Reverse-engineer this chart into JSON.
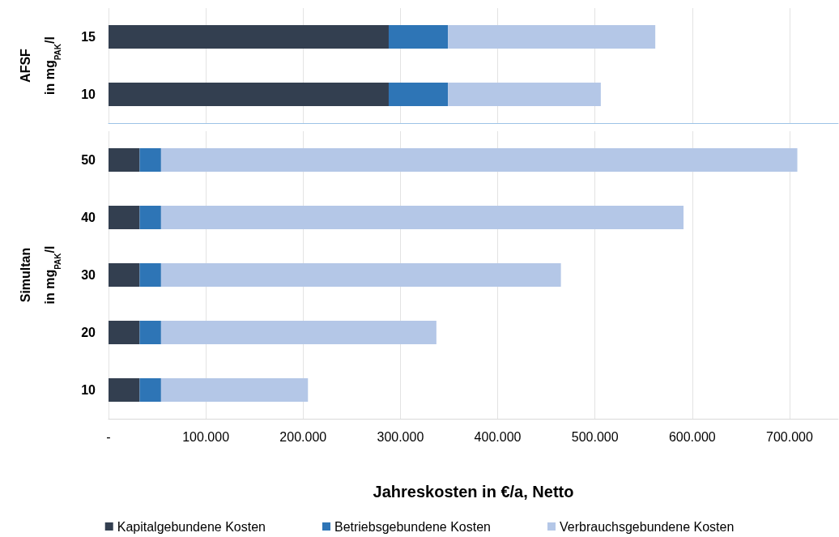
{
  "chart_data": [
    {
      "type": "bar",
      "orientation": "horizontal",
      "stacked": true,
      "ylabel": "AFSF\nin mg$_{PAK}$/l",
      "categories": [
        "15",
        "10"
      ],
      "series": [
        {
          "color": "#333f50",
          "values": [
            288000,
            288000
          ]
        },
        {
          "color": "#2e75b6",
          "values": [
            61000,
            61000
          ]
        },
        {
          "color": "#b4c7e7",
          "values": [
            213000,
            157000
          ]
        }
      ],
      "xlim": [
        0,
        750000
      ],
      "xticks": [
        {
          "value": 0,
          "label": null
        },
        {
          "value": 100000,
          "label": null
        },
        {
          "value": 200000,
          "label": null
        },
        {
          "value": 300000,
          "label": null
        },
        {
          "value": 400000,
          "label": null
        },
        {
          "value": 500000,
          "label": null
        },
        {
          "value": 600000,
          "label": null
        },
        {
          "value": 700000,
          "label": null
        }
      ],
      "grid": "x",
      "tick_labels": "y"
    },
    {
      "type": "bar",
      "orientation": "horizontal",
      "stacked": true,
      "ylabel": "Simultan\nin mg$_{PAK}$/l",
      "xlabel": "Jahreskosten in €/a, Netto",
      "categories": [
        "50",
        "40",
        "30",
        "20",
        "10"
      ],
      "series": [
        {
          "name": "Kapitalgebundene Kosten",
          "color": "#333f50",
          "values": [
            32000,
            32000,
            32000,
            32000,
            32000
          ]
        },
        {
          "name": "Betriebsgebundene Kosten",
          "color": "#2e75b6",
          "values": [
            22000,
            22000,
            22000,
            22000,
            22000
          ]
        },
        {
          "name": "Verbrauchsgebundene Kosten",
          "color": "#b4c7e7",
          "values": [
            654000,
            537000,
            411000,
            283000,
            151000
          ]
        }
      ],
      "xlim": [
        0,
        750000
      ],
      "xticks": [
        {
          "value": 0,
          "label": "-"
        },
        {
          "value": 100000,
          "label": "100.000"
        },
        {
          "value": 200000,
          "label": "200.000"
        },
        {
          "value": 300000,
          "label": "300.000"
        },
        {
          "value": 400000,
          "label": "400.000"
        },
        {
          "value": 500000,
          "label": "500.000"
        },
        {
          "value": 600000,
          "label": "600.000"
        },
        {
          "value": 700000,
          "label": "700.000"
        }
      ],
      "grid": "x",
      "legend": "bottom"
    }
  ]
}
